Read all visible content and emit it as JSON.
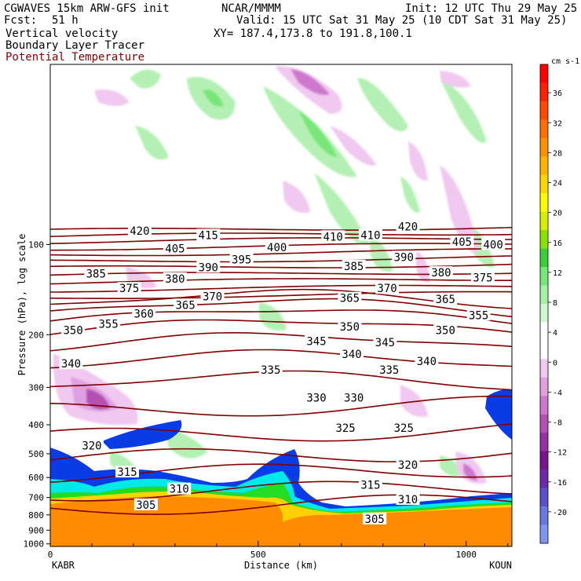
{
  "header": {
    "model": "CGWAVES 15km ARW-GFS init",
    "forecast_label": "Fcst:",
    "forecast_hours": "51 h",
    "org": "NCAR/MMMM",
    "init": "Init: 12 UTC Thu 29 May 25",
    "valid": "Valid: 15 UTC Sat 31 May 25 (10 CDT Sat 31 May 25)",
    "xy": "XY= 187.4,173.8 to 191.8,100.1",
    "field1": "Vertical velocity",
    "field2": "Boundary Layer Tracer",
    "field3": "Potential Temperature"
  },
  "colors": {
    "theta": "#800000",
    "tracer_orange": "#ff8c00",
    "tracer_yellow": "#ffd200",
    "tracer_green": "#22dd22",
    "tracer_cyan": "#00e8e8",
    "tracer_blue": "#0a3ce6"
  },
  "chart_data": {
    "type": "heatmap",
    "xlabel": "Distance (km)",
    "ylabel": "Pressure (hPa), log scale",
    "x_ticks": [
      0,
      500,
      1000
    ],
    "xlim": [
      0,
      1110
    ],
    "endpoints": {
      "left": "KABR",
      "right": "KOUN"
    },
    "y_ticks": [
      100,
      200,
      300,
      400,
      500,
      600,
      700,
      800,
      900,
      1000
    ],
    "ylim": [
      1020,
      25
    ],
    "colorbar": {
      "units": "cm s-1",
      "labels": [
        36,
        32,
        28,
        24,
        20,
        16,
        12,
        8,
        4,
        0,
        -4,
        -8,
        -12,
        -16,
        -20
      ],
      "colors": [
        "#ff0000",
        "#ff2200",
        "#ff4a00",
        "#ff7000",
        "#ff9100",
        "#ffb400",
        "#ffd500",
        "#ffff00",
        "#d2f000",
        "#8ce000",
        "#3ccd3c",
        "#78e678",
        "#a8f0a8",
        "#d2f8d2",
        "#ffffff",
        "#ffffff",
        "#f0c8f0",
        "#e0a0e0",
        "#cd78cd",
        "#b450b4",
        "#9632a0",
        "#78148c",
        "#6a2aaa",
        "#5a50c8",
        "#6a78dc",
        "#8296f0"
      ]
    },
    "theta_contours_K": [
      305,
      310,
      315,
      320,
      325,
      330,
      335,
      340,
      345,
      350,
      355,
      360,
      365,
      370,
      375,
      380,
      385,
      390,
      395,
      400,
      405,
      410,
      415,
      420
    ],
    "contour_labels": [
      {
        "v": 305,
        "x": 230,
        "p": 740
      },
      {
        "v": 305,
        "x": 780,
        "p": 825
      },
      {
        "v": 310,
        "x": 310,
        "p": 655
      },
      {
        "v": 310,
        "x": 860,
        "p": 710
      },
      {
        "v": 315,
        "x": 185,
        "p": 575
      },
      {
        "v": 315,
        "x": 770,
        "p": 635
      },
      {
        "v": 320,
        "x": 100,
        "p": 470
      },
      {
        "v": 320,
        "x": 860,
        "p": 545
      },
      {
        "v": 325,
        "x": 710,
        "p": 410
      },
      {
        "v": 325,
        "x": 850,
        "p": 410
      },
      {
        "v": 330,
        "x": 640,
        "p": 325
      },
      {
        "v": 330,
        "x": 730,
        "p": 325
      },
      {
        "v": 335,
        "x": 530,
        "p": 262
      },
      {
        "v": 335,
        "x": 815,
        "p": 262
      },
      {
        "v": 340,
        "x": 50,
        "p": 250
      },
      {
        "v": 340,
        "x": 725,
        "p": 232
      },
      {
        "v": 340,
        "x": 905,
        "p": 245
      },
      {
        "v": 345,
        "x": 640,
        "p": 210
      },
      {
        "v": 345,
        "x": 805,
        "p": 212
      },
      {
        "v": 350,
        "x": 55,
        "p": 193
      },
      {
        "v": 350,
        "x": 720,
        "p": 188
      },
      {
        "v": 350,
        "x": 950,
        "p": 193
      },
      {
        "v": 355,
        "x": 140,
        "p": 184
      },
      {
        "v": 355,
        "x": 1030,
        "p": 172
      },
      {
        "v": 360,
        "x": 225,
        "p": 170
      },
      {
        "v": 365,
        "x": 325,
        "p": 159
      },
      {
        "v": 365,
        "x": 720,
        "p": 151
      },
      {
        "v": 365,
        "x": 950,
        "p": 152
      },
      {
        "v": 370,
        "x": 390,
        "p": 149
      },
      {
        "v": 370,
        "x": 810,
        "p": 140
      },
      {
        "v": 375,
        "x": 190,
        "p": 140
      },
      {
        "v": 375,
        "x": 1040,
        "p": 129
      },
      {
        "v": 380,
        "x": 300,
        "p": 130
      },
      {
        "v": 380,
        "x": 940,
        "p": 124
      },
      {
        "v": 385,
        "x": 110,
        "p": 125
      },
      {
        "v": 385,
        "x": 730,
        "p": 118
      },
      {
        "v": 390,
        "x": 380,
        "p": 119
      },
      {
        "v": 390,
        "x": 850,
        "p": 110
      },
      {
        "v": 395,
        "x": 460,
        "p": 112
      },
      {
        "v": 400,
        "x": 545,
        "p": 102
      },
      {
        "v": 400,
        "x": 1065,
        "p": 100
      },
      {
        "v": 405,
        "x": 300,
        "p": 103
      },
      {
        "v": 405,
        "x": 990,
        "p": 98
      },
      {
        "v": 410,
        "x": 680,
        "p": 94
      },
      {
        "v": 410,
        "x": 770,
        "p": 93
      },
      {
        "v": 415,
        "x": 380,
        "p": 93
      },
      {
        "v": 420,
        "x": 215,
        "p": 90
      },
      {
        "v": 420,
        "x": 860,
        "p": 87
      }
    ]
  }
}
